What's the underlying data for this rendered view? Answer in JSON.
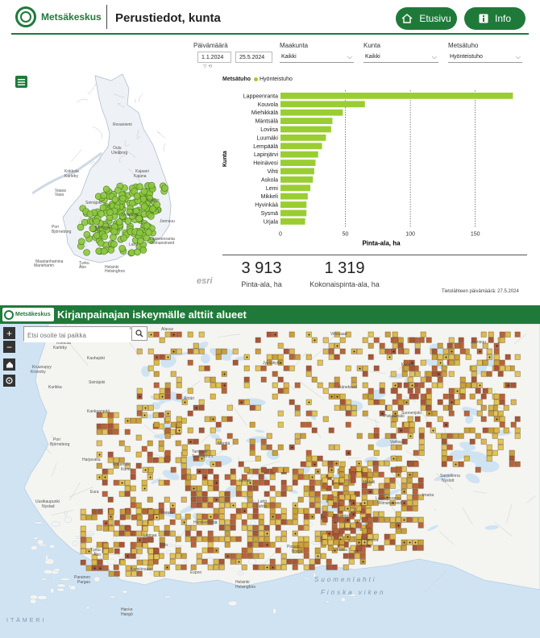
{
  "header": {
    "logo_text": "Metsäkeskus",
    "title": "Perustiedot, kunta",
    "home_button": "Etusivu",
    "info_button": "Info"
  },
  "filters": {
    "date_label": "Päivämäärä",
    "date_start": "1.1.2024",
    "date_end": "25.5.2024",
    "maakunta_label": "Maakunta",
    "maakunta_value": "Kaikki",
    "kunta_label": "Kunta",
    "kunta_value": "Kaikki",
    "metsatuho_label": "Metsätuho",
    "metsatuho_value": "Hyönteistuho"
  },
  "upper_map": {
    "esri": "esri",
    "places": [
      "Rovaniemi",
      "Oulu",
      "Uleåborg",
      "Kokkola",
      "Karleby",
      "Vaasa",
      "Vasa",
      "Kajaani",
      "Kajana",
      "Joensuu",
      "Seinäjoki",
      "Pori",
      "Björneborg",
      "Tampere",
      "Lahti",
      "Lappeenranta",
      "Villmanstrand",
      "Turku",
      "Åbo",
      "Helsinki",
      "Helsingfors",
      "Maarianhamina",
      "Mariehamn",
      "Jyväskylä",
      "Kuopio"
    ]
  },
  "chart_data": {
    "type": "bar",
    "orientation": "horizontal",
    "legend_title": "Metsätuho",
    "legend": [
      "Hyönteistuho"
    ],
    "color": "#9acd32",
    "xlabel": "Pinta-ala, ha",
    "ylabel": "Kunta",
    "xlim": [
      0,
      180
    ],
    "xticks": [
      0,
      50,
      100,
      150
    ],
    "categories": [
      "Lappeenranta",
      "Kouvola",
      "Miehikkälä",
      "Mäntsälä",
      "Loviisa",
      "Luumäki",
      "Lempäälä",
      "Lapinjärvi",
      "Heinävesi",
      "Vihti",
      "Askola",
      "Lemi",
      "Mikkeli",
      "Hyvinkää",
      "Sysmä",
      "Urjala"
    ],
    "values": [
      179,
      65,
      48,
      40,
      39,
      35,
      32,
      29,
      27,
      26,
      25,
      23,
      21,
      20,
      20,
      19
    ]
  },
  "kpis": [
    {
      "value": "3 913",
      "label": "Pinta-ala, ha"
    },
    {
      "value": "1 319",
      "label": "Kokonaispinta-ala, ha"
    }
  ],
  "source_date": "Tietolähteen päivämäärä: 27.5.2024",
  "lower_map": {
    "logo_text": "Metsäkeskus",
    "title": "Kirjanpainajan iskeymälle alttiit alueet",
    "search_placeholder": "Etsi osoite tai paikka",
    "zoom_in": "+",
    "zoom_out": "−",
    "places": [
      "Kokkola",
      "Karleby",
      "Kruunupyy",
      "Kronoby",
      "Kauhajoki",
      "Seinäjoki",
      "Kurikka",
      "Kankaanpää",
      "Pori",
      "Björneborg",
      "Harjavalta",
      "Kokemäki",
      "Kumo",
      "Eura",
      "Uusikaupunki",
      "Nystad",
      "Turku",
      "Åbo",
      "Salo",
      "Parainen",
      "Pargas",
      "Kemiönsaari",
      "Hanko",
      "Hangö",
      "Helsinki",
      "Helsingfors",
      "Espoo",
      "Porvoo",
      "Borgå",
      "Kotka",
      "Hamina",
      "Lahti",
      "Lahtis",
      "Hämeenlinna",
      "Tampere",
      "Tammerfors",
      "Jyväskylä",
      "Jämsä",
      "Kuopio",
      "Varkaus",
      "Mikkeli",
      "Savonlinna",
      "Nyslott",
      "Joensuu",
      "Lappeenranta",
      "Villmanstrand",
      "Kouvola",
      "Imatra",
      "Alavus",
      "Viitasaari",
      "Äänekoski",
      "Suonenjoki",
      "Pieksämäki",
      "Forssa",
      "Loimaa",
      "Mänttä",
      "Ähtäri"
    ],
    "sea_label_fi": "Suomenlahti",
    "sea_label_sv": "Finska viken",
    "itameri": "ITÄMERI"
  }
}
